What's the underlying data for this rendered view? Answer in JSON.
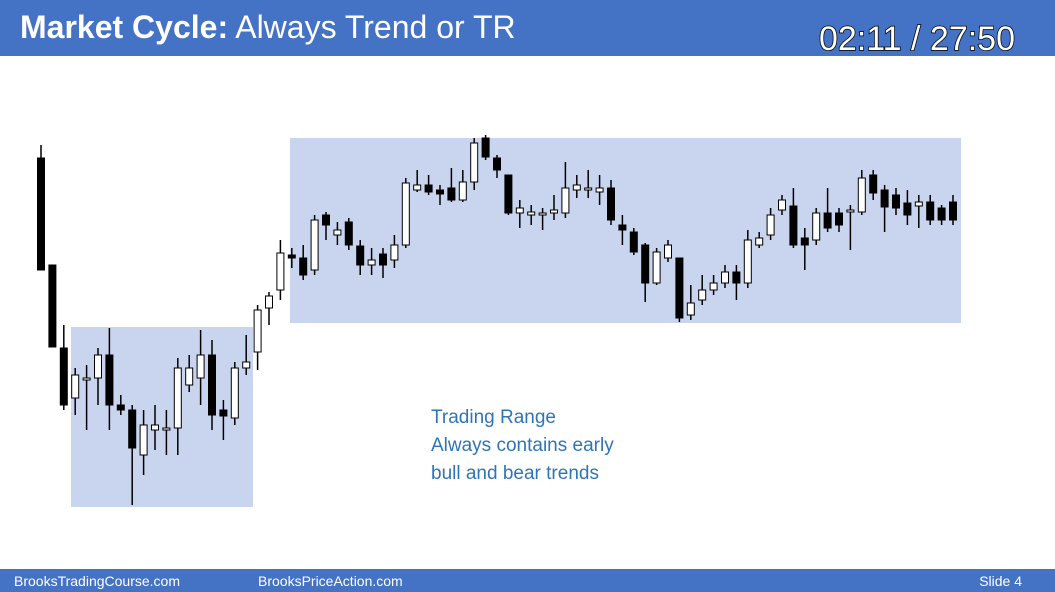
{
  "header": {
    "title_bold": "Market Cycle:",
    "title_rest": "Always Trend or TR",
    "timer": "02:11 / 27:50"
  },
  "chart_data": {
    "type": "candlestick",
    "annotation": [
      "Trading Range",
      "Always contains early",
      "bull and bear trends"
    ],
    "open": [
      442,
      335,
      252,
      202,
      220,
      222,
      245,
      195,
      190,
      145,
      170,
      170,
      172,
      215,
      222,
      245,
      190,
      182,
      232,
      248,
      292,
      310,
      345,
      342,
      330,
      385,
      365,
      378,
      354,
      335,
      346,
      340,
      355,
      410,
      415,
      410,
      412,
      400,
      418,
      462,
      442,
      425,
      387,
      385,
      385,
      387,
      387,
      410,
      410,
      408,
      412,
      375,
      368,
      355,
      317,
      342,
      342,
      285,
      300,
      310,
      317,
      328,
      317,
      355,
      365,
      390,
      394,
      362,
      360,
      387,
      387,
      388,
      388,
      425,
      410,
      405,
      397,
      394,
      398,
      392,
      398
    ],
    "high": [
      455,
      335,
      275,
      232,
      235,
      252,
      272,
      205,
      195,
      190,
      195,
      190,
      242,
      245,
      270,
      260,
      200,
      238,
      265,
      295,
      308,
      360,
      352,
      355,
      385,
      388,
      378,
      382,
      360,
      352,
      352,
      365,
      422,
      430,
      425,
      415,
      432,
      430,
      462,
      465,
      445,
      425,
      400,
      395,
      392,
      405,
      438,
      425,
      430,
      425,
      420,
      385,
      372,
      357,
      352,
      360,
      342,
      315,
      325,
      325,
      335,
      335,
      370,
      368,
      392,
      405,
      412,
      372,
      392,
      412,
      392,
      395,
      430,
      430,
      415,
      412,
      410,
      405,
      405,
      395,
      405
    ],
    "low": [
      330,
      253,
      190,
      185,
      170,
      195,
      170,
      185,
      95,
      125,
      150,
      145,
      145,
      208,
      195,
      170,
      160,
      175,
      225,
      230,
      275,
      300,
      332,
      320,
      325,
      360,
      355,
      350,
      325,
      325,
      322,
      332,
      352,
      408,
      405,
      395,
      398,
      398,
      410,
      440,
      422,
      385,
      372,
      375,
      370,
      380,
      382,
      402,
      402,
      395,
      375,
      355,
      345,
      298,
      315,
      338,
      278,
      280,
      295,
      305,
      312,
      300,
      312,
      352,
      360,
      385,
      352,
      330,
      355,
      368,
      368,
      350,
      385,
      400,
      368,
      385,
      375,
      372,
      375,
      375,
      375
    ],
    "close": [
      330,
      253,
      195,
      225,
      222,
      245,
      195,
      190,
      152,
      175,
      175,
      172,
      232,
      232,
      245,
      185,
      184,
      232,
      238,
      290,
      304,
      347,
      342,
      325,
      380,
      375,
      370,
      355,
      335,
      340,
      335,
      355,
      417,
      415,
      408,
      406,
      400,
      418,
      457,
      443,
      430,
      387,
      392,
      388,
      387,
      390,
      412,
      415,
      412,
      412,
      380,
      370,
      348,
      317,
      348,
      355,
      282,
      297,
      310,
      317,
      328,
      317,
      360,
      362,
      385,
      400,
      355,
      355,
      387,
      372,
      375,
      390,
      422,
      407,
      393,
      392,
      385,
      398,
      380,
      380,
      380
    ]
  },
  "footer": {
    "left": "BrooksTradingCourse.com",
    "center": "BrooksPriceAction.com",
    "right": "Slide  4"
  }
}
